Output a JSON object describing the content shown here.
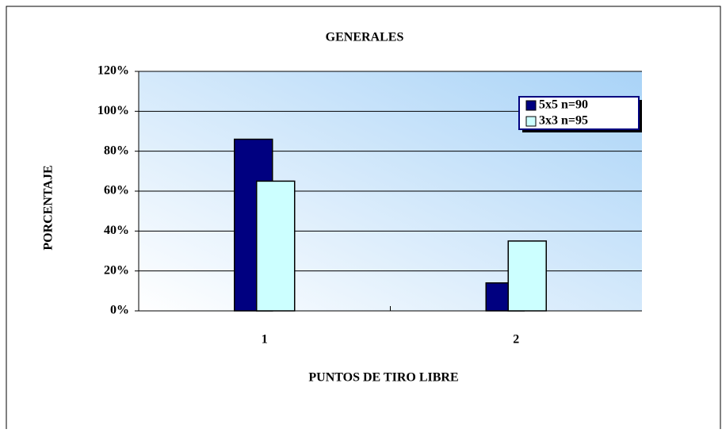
{
  "chart_data": {
    "type": "bar",
    "title": "GENERALES",
    "x_label": "PUNTOS DE TIRO LIBRE",
    "y_label": "PORCENTAJE",
    "categories": [
      "1",
      "2"
    ],
    "series": [
      {
        "name": "5x5 n=90",
        "color": "#000080",
        "values": [
          86,
          14
        ]
      },
      {
        "name": "3x3 n=95",
        "color": "#ccffff",
        "values": [
          65,
          35
        ]
      }
    ],
    "ylim": [
      0,
      120
    ],
    "yticks": [
      {
        "value": 0,
        "label": "0%"
      },
      {
        "value": 20,
        "label": "20%"
      },
      {
        "value": 40,
        "label": "40%"
      },
      {
        "value": 60,
        "label": "60%"
      },
      {
        "value": 80,
        "label": "80%"
      },
      {
        "value": 100,
        "label": "100%"
      },
      {
        "value": 120,
        "label": "120%"
      }
    ],
    "grid": true,
    "legend": "top-right"
  }
}
